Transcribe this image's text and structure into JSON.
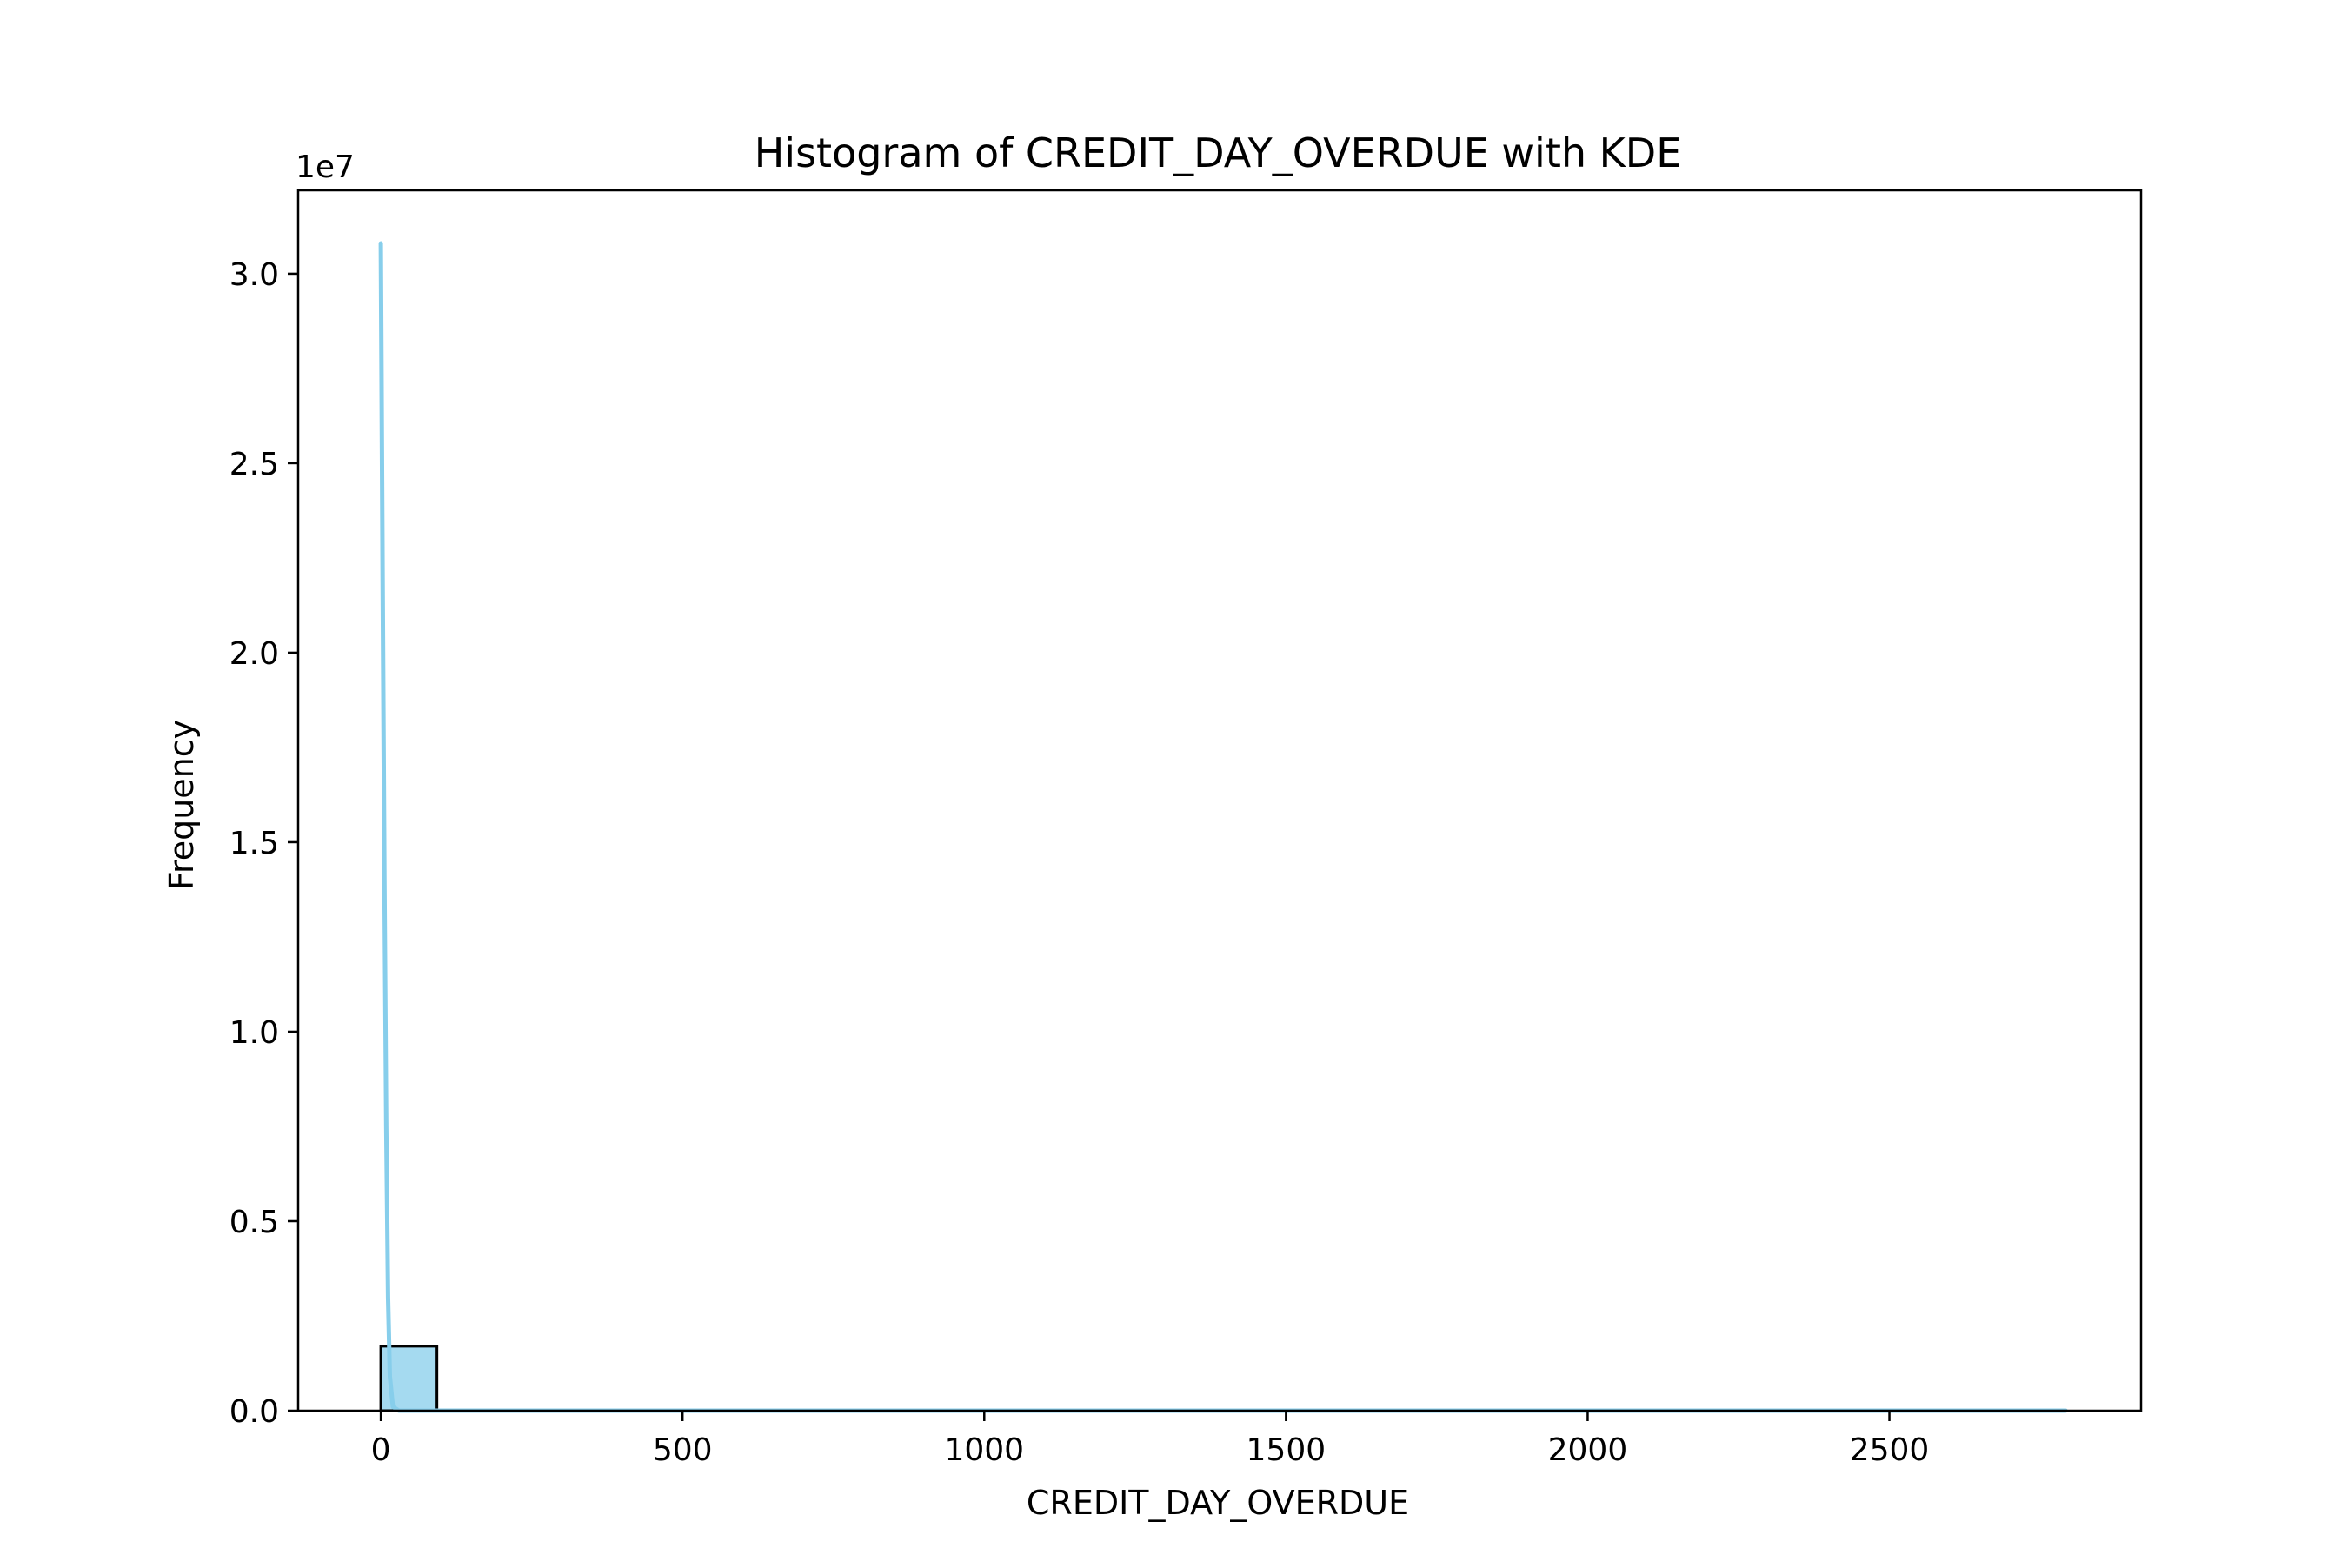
{
  "chart_data": {
    "type": "bar",
    "title": "Histogram of CREDIT_DAY_OVERDUE with KDE",
    "xlabel": "CREDIT_DAY_OVERDUE",
    "ylabel": "Frequency",
    "y_offset_label": "1e7",
    "y_multiplier": 10000000,
    "xlim": [
      -137,
      2917
    ],
    "ylim": [
      0,
      32200000
    ],
    "x_ticks": [
      0,
      500,
      1000,
      1500,
      2000,
      2500
    ],
    "x_tick_labels": [
      "0",
      "500",
      "1000",
      "1500",
      "2000",
      "2500"
    ],
    "y_ticks": [
      0,
      5000000,
      10000000,
      15000000,
      20000000,
      25000000,
      30000000
    ],
    "y_tick_labels": [
      "0.0",
      "0.5",
      "1.0",
      "1.5",
      "2.0",
      "2.5",
      "3.0"
    ],
    "grid": false,
    "bins": [
      {
        "x0": 0,
        "x1": 93,
        "count": 1700000
      }
    ],
    "bin_edge_max": 2792,
    "kde": {
      "name": "KDE",
      "points": [
        [
          0,
          30800000
        ],
        [
          3,
          22000000
        ],
        [
          6,
          14000000
        ],
        [
          9,
          7500000
        ],
        [
          12,
          3000000
        ],
        [
          15,
          900000
        ],
        [
          20,
          100000
        ],
        [
          30,
          0
        ],
        [
          2792,
          0
        ]
      ]
    },
    "colors": {
      "bar_fill": "#87ceeb",
      "bar_edge": "#000000",
      "kde_line": "#87ceeb",
      "axes": "#000000"
    }
  }
}
